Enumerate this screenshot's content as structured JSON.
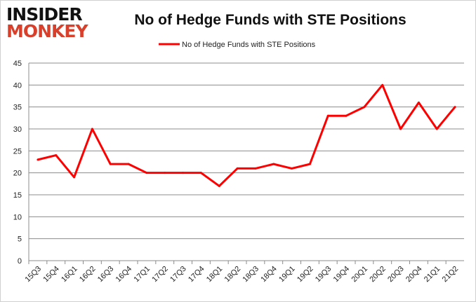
{
  "logo": {
    "line1": "INSIDER",
    "line2": "MONKEY"
  },
  "chart_data": {
    "type": "line",
    "title": "No of Hedge Funds with STE Positions",
    "categories": [
      "15Q3",
      "15Q4",
      "16Q1",
      "16Q2",
      "16Q3",
      "16Q4",
      "17Q1",
      "17Q2",
      "17Q3",
      "17Q4",
      "18Q1",
      "18Q2",
      "18Q3",
      "18Q4",
      "19Q1",
      "19Q2",
      "19Q3",
      "19Q4",
      "20Q1",
      "20Q2",
      "20Q3",
      "20Q4",
      "21Q1",
      "21Q2"
    ],
    "series": [
      {
        "name": "No of Hedge Funds with STE Positions",
        "color": "#ff0000",
        "values": [
          23,
          24,
          19,
          30,
          22,
          22,
          20,
          20,
          20,
          20,
          17,
          21,
          21,
          22,
          21,
          22,
          33,
          33,
          35,
          40,
          30,
          36,
          30,
          35
        ]
      }
    ],
    "ylim": [
      0,
      45
    ],
    "yticks": [
      0,
      5,
      10,
      15,
      20,
      25,
      30,
      35,
      40,
      45
    ],
    "grid": true,
    "legend": "top"
  }
}
